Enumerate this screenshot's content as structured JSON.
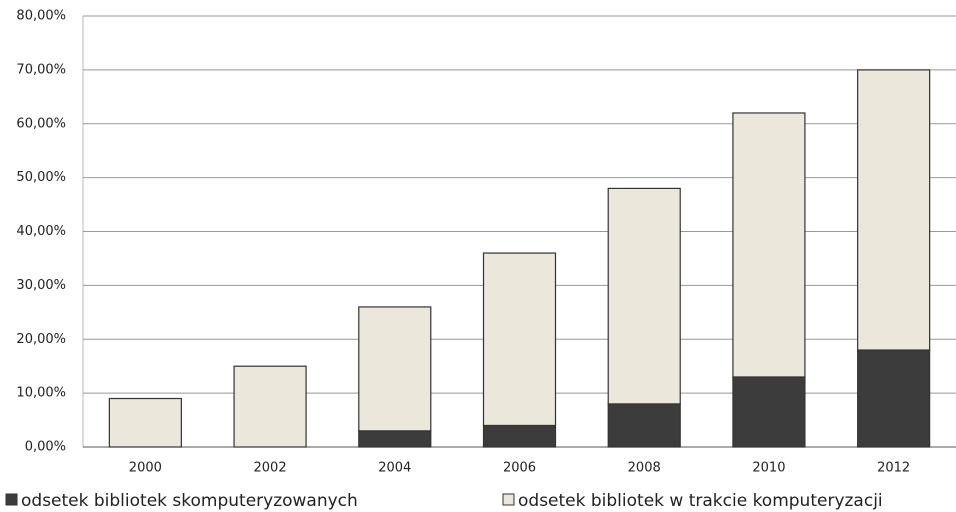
{
  "chart_data": {
    "type": "stacked_bar",
    "categories": [
      "2000",
      "2002",
      "2004",
      "2006",
      "2008",
      "2010",
      "2012"
    ],
    "series": [
      {
        "name": "odsetek bibliotek skomputeryzowanych",
        "color": "#3c3c3c",
        "values": [
          0,
          0,
          3,
          4,
          8,
          13,
          18
        ]
      },
      {
        "name": "odsetek bibliotek w trakcie komputeryzacji",
        "color": "#ebe7db",
        "values": [
          9,
          15,
          23,
          32,
          40,
          49,
          52
        ]
      }
    ],
    "ylim": [
      0,
      80
    ],
    "yticks": [
      {
        "value": 0,
        "label": "0,00%"
      },
      {
        "value": 10,
        "label": "10,00%"
      },
      {
        "value": 20,
        "label": "20,00%"
      },
      {
        "value": 30,
        "label": "30,00%"
      },
      {
        "value": 40,
        "label": "40,00%"
      },
      {
        "value": 50,
        "label": "50,00%"
      },
      {
        "value": 60,
        "label": "60,00%"
      },
      {
        "value": 70,
        "label": "70,00%"
      },
      {
        "value": 80,
        "label": "80,00%"
      }
    ],
    "grid": true,
    "legend": "bottom"
  }
}
